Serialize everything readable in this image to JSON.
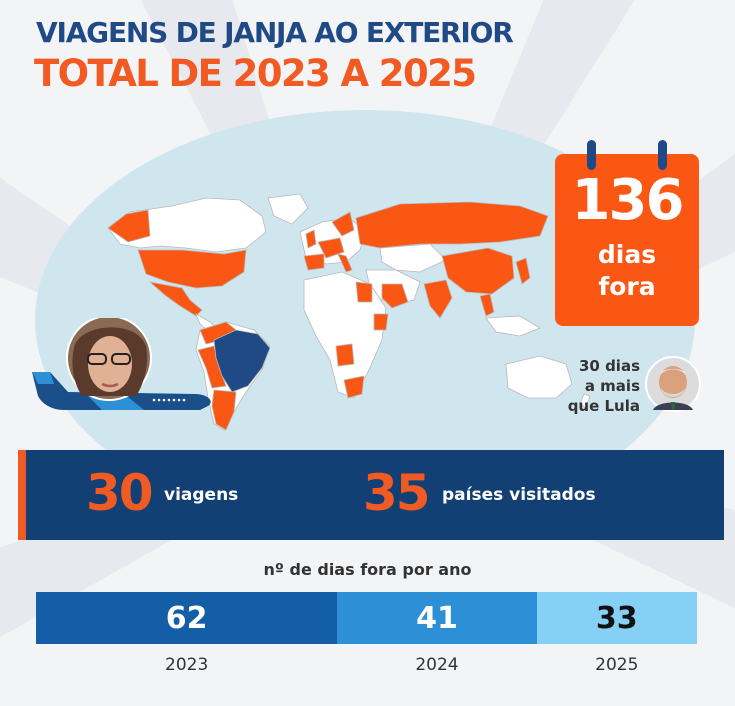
{
  "header": {
    "title_line1": "VIAGENS DE JANJA AO EXTERIOR",
    "title_line2": "TOTAL DE 2023 A 2025"
  },
  "calendar": {
    "number": "136",
    "label_line1": "dias",
    "label_line2": "fora"
  },
  "comparison": {
    "line1": "30 dias",
    "line2": "a mais",
    "line3": "que Lula"
  },
  "stats": {
    "trips_value": "30",
    "trips_label": "viagens",
    "countries_value": "35",
    "countries_label": "países visitados"
  },
  "colors": {
    "navy": "#1f4a86",
    "orange": "#f15a22",
    "calendar": "#fa5714",
    "map_bg": "#cfe6ef",
    "bar_2023": "#135ea6",
    "bar_2024": "#2d90d6",
    "bar_2025": "#85d0f4"
  },
  "chart_data": {
    "type": "bar",
    "orientation": "stacked-horizontal",
    "title": "nº de dias fora por ano",
    "categories": [
      "2023",
      "2024",
      "2025"
    ],
    "values": [
      62,
      41,
      33
    ],
    "total": 136
  }
}
